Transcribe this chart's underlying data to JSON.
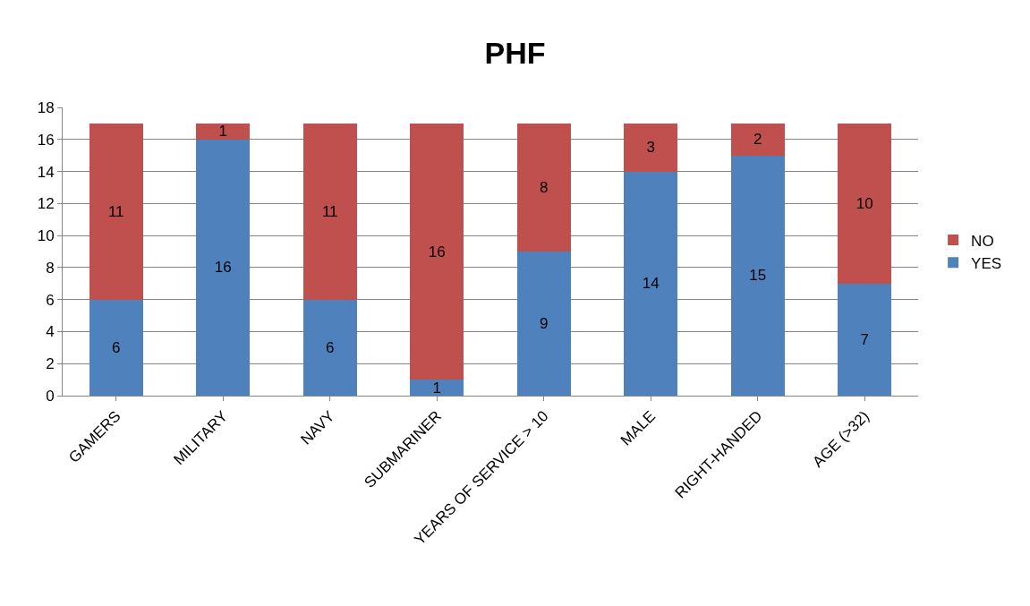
{
  "chart_data": {
    "type": "bar",
    "title": "PHF",
    "stacked": true,
    "categories": [
      "GAMERS",
      "MILITARY",
      "NAVY",
      "SUBMARINER",
      "YEARS OF SERVICE > 10",
      "MALE",
      "RIGHT-HANDED",
      "AGE (>32)"
    ],
    "series": [
      {
        "name": "YES",
        "color": "#4f81bd",
        "values": [
          6,
          16,
          6,
          1,
          9,
          14,
          15,
          7
        ]
      },
      {
        "name": "NO",
        "color": "#c0504d",
        "values": [
          11,
          1,
          11,
          16,
          8,
          3,
          2,
          10
        ]
      }
    ],
    "ylim": [
      0,
      18
    ],
    "yticks": [
      0,
      2,
      4,
      6,
      8,
      10,
      12,
      14,
      16,
      18
    ],
    "grid": "y",
    "legend": "right",
    "data_labels": true
  }
}
